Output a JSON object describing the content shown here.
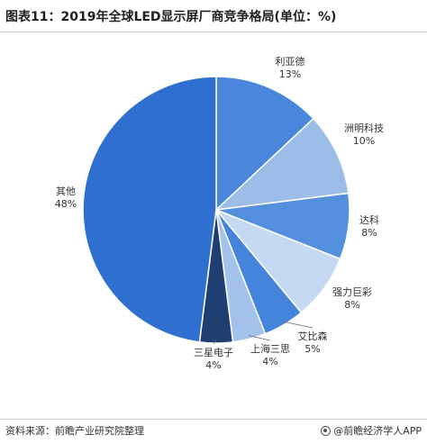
{
  "header": {
    "title": "图表11：2019年全球LED显示屏厂商竞争格局(单位：%)"
  },
  "footer": {
    "source": "资料来源：前瞻产业研究院整理",
    "brand": "@前瞻经济学人APP"
  },
  "watermark": {
    "text": "前瞻产业研究院"
  },
  "chart_data": {
    "type": "pie",
    "title": "图表11：2019年全球LED显示屏厂商竞争格局(单位：%)",
    "start": "12 o'clock, clockwise",
    "slices": [
      {
        "label": "利亚德",
        "value": 13,
        "pct": "13%",
        "color": "#4a86dc"
      },
      {
        "label": "洲明科技",
        "value": 10,
        "pct": "10%",
        "color": "#9dbde9"
      },
      {
        "label": "达科",
        "value": 8,
        "pct": "8%",
        "color": "#5590de"
      },
      {
        "label": "强力巨彩",
        "value": 8,
        "pct": "8%",
        "color": "#c5d9f2"
      },
      {
        "label": "艾比森",
        "value": 5,
        "pct": "5%",
        "color": "#4584db"
      },
      {
        "label": "上海三思",
        "value": 4,
        "pct": "4%",
        "color": "#a4c3ec"
      },
      {
        "label": "三星电子",
        "value": 4,
        "pct": "4%",
        "color": "#1f3f73"
      },
      {
        "label": "其他",
        "value": 48,
        "pct": "48%",
        "color": "#2f6fcf"
      }
    ]
  }
}
